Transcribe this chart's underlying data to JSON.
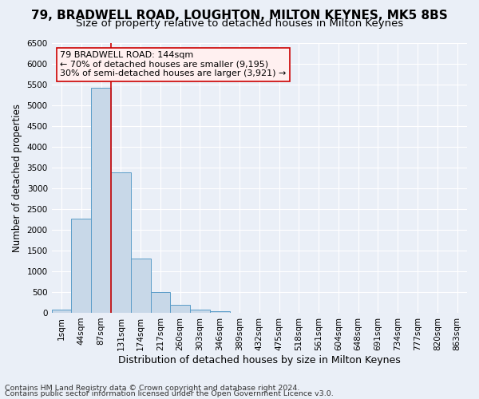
{
  "title1": "79, BRADWELL ROAD, LOUGHTON, MILTON KEYNES, MK5 8BS",
  "title2": "Size of property relative to detached houses in Milton Keynes",
  "xlabel": "Distribution of detached houses by size in Milton Keynes",
  "ylabel": "Number of detached properties",
  "footer1": "Contains HM Land Registry data © Crown copyright and database right 2024.",
  "footer2": "Contains public sector information licensed under the Open Government Licence v3.0.",
  "annotation_line1": "79 BRADWELL ROAD: 144sqm",
  "annotation_line2": "← 70% of detached houses are smaller (9,195)",
  "annotation_line3": "30% of semi-detached houses are larger (3,921) →",
  "bar_values": [
    75,
    2270,
    5430,
    3390,
    1310,
    490,
    195,
    80,
    30,
    0,
    0,
    0,
    0,
    0,
    0,
    0,
    0,
    0,
    0,
    0,
    0
  ],
  "bar_labels": [
    "1sqm",
    "44sqm",
    "87sqm",
    "131sqm",
    "174sqm",
    "217sqm",
    "260sqm",
    "303sqm",
    "346sqm",
    "389sqm",
    "432sqm",
    "475sqm",
    "518sqm",
    "561sqm",
    "604sqm",
    "648sqm",
    "691sqm",
    "734sqm",
    "777sqm",
    "820sqm",
    "863sqm"
  ],
  "bar_color": "#c8d8e8",
  "bar_edge_color": "#5a9cc8",
  "vline_color": "#cc0000",
  "vline_x": 2.5,
  "ylim": [
    0,
    6500
  ],
  "yticks": [
    0,
    500,
    1000,
    1500,
    2000,
    2500,
    3000,
    3500,
    4000,
    4500,
    5000,
    5500,
    6000,
    6500
  ],
  "bg_color": "#eaeff7",
  "plot_bg_color": "#eaeff7",
  "grid_color": "#ffffff",
  "annotation_box_facecolor": "#fff0f0",
  "annotation_box_edge": "#cc0000",
  "title1_fontsize": 11,
  "title2_fontsize": 9.5,
  "xlabel_fontsize": 9,
  "ylabel_fontsize": 8.5,
  "tick_fontsize": 7.5,
  "footer_fontsize": 6.8,
  "annotation_fontsize": 8
}
